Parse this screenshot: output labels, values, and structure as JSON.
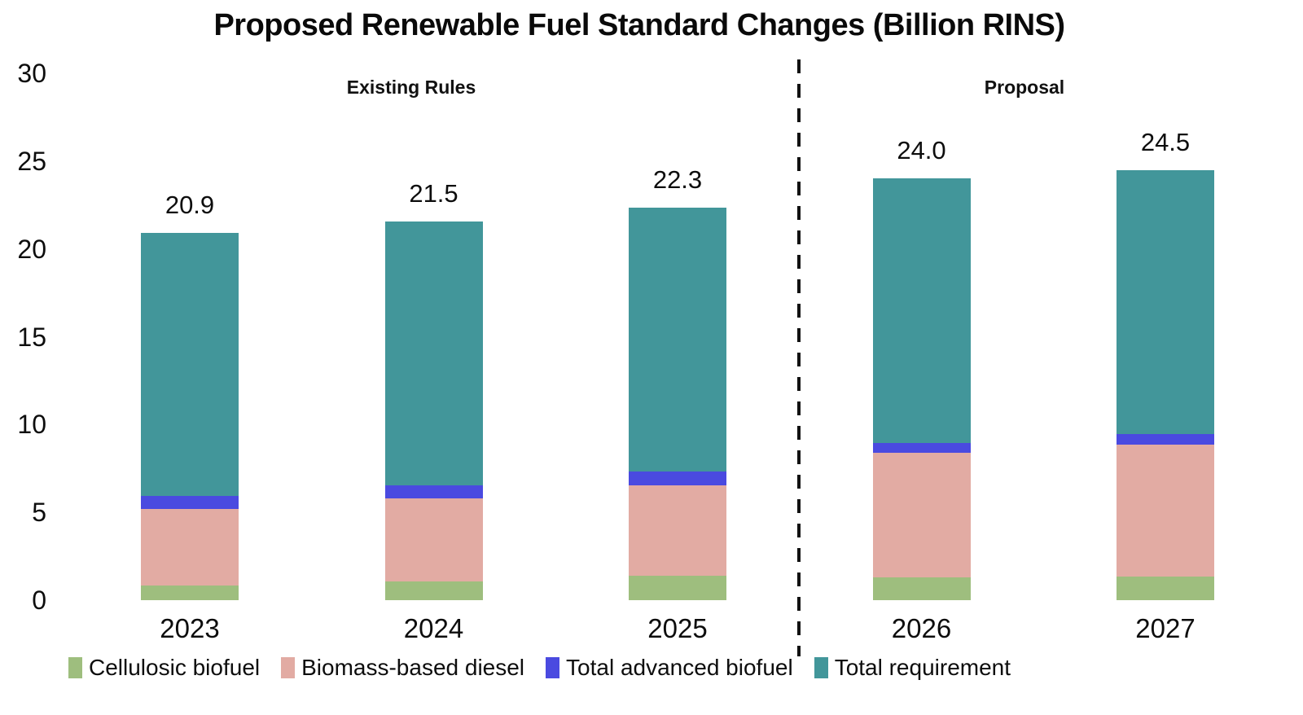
{
  "title": "Proposed Renewable Fuel Standard Changes (Billion RINS)",
  "chart_data": {
    "type": "bar",
    "stacked": true,
    "title": "Proposed Renewable Fuel Standard Changes (Billion RINS)",
    "categories": [
      "2023",
      "2024",
      "2025",
      "2026",
      "2027"
    ],
    "series": [
      {
        "name": "Cellulosic biofuel",
        "color": "#9ebe7e",
        "values": [
          0.84,
          1.09,
          1.38,
          1.3,
          1.36
        ]
      },
      {
        "name": "Biomass-based diesel",
        "color": "#e2aba3",
        "values": [
          4.37,
          4.71,
          5.18,
          7.1,
          7.5
        ]
      },
      {
        "name": "Total advanced biofuel",
        "color": "#4a4ae0",
        "values": [
          0.73,
          0.74,
          0.77,
          0.55,
          0.6
        ]
      },
      {
        "name": "Total requirement",
        "color": "#42969a",
        "values": [
          14.96,
          15.0,
          15.0,
          15.05,
          15.0
        ]
      }
    ],
    "bar_total_labels": [
      "20.9",
      "21.5",
      "22.3",
      "24.0",
      "24.5"
    ],
    "group_labels": {
      "existing": "Existing Rules",
      "proposal": "Proposal"
    },
    "divider_between": [
      "2025",
      "2026"
    ],
    "ylim": [
      0,
      30
    ],
    "yticks": [
      "0",
      "5",
      "10",
      "15",
      "20",
      "25",
      "30"
    ],
    "grid": "off",
    "legend_position": "bottom",
    "xlabel": "",
    "ylabel": ""
  }
}
